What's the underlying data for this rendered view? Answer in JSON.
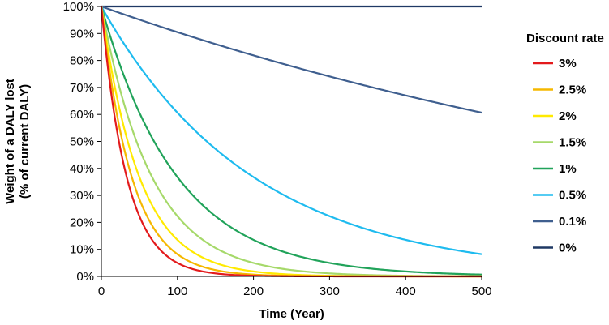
{
  "chart_data": {
    "type": "line",
    "title": "",
    "xlabel": "Time (Year)",
    "ylabel_lines": [
      "Weight of a DALY lost",
      "(% of current DALY)"
    ],
    "xlim": [
      0,
      500
    ],
    "ylim": [
      0,
      100
    ],
    "x_ticks": [
      0,
      100,
      200,
      300,
      400,
      500
    ],
    "x_tick_labels": [
      "0",
      "100",
      "200",
      "300",
      "400",
      "500"
    ],
    "y_ticks": [
      0,
      10,
      20,
      30,
      40,
      50,
      60,
      70,
      80,
      90,
      100
    ],
    "y_tick_labels": [
      "0%",
      "10%",
      "20%",
      "30%",
      "40%",
      "50%",
      "60%",
      "70%",
      "80%",
      "90%",
      "100%"
    ],
    "grid": false,
    "legend": {
      "title": "Discount rate",
      "placement": "right"
    },
    "x": [
      0,
      25,
      50,
      75,
      100,
      150,
      200,
      250,
      300,
      350,
      400,
      450,
      500
    ],
    "series": [
      {
        "name": "3%",
        "rate": 0.03,
        "color": "#e31a1c",
        "values": [
          100,
          47.8,
          22.8,
          10.9,
          5.2,
          1.2,
          0.3,
          0.06,
          0.01,
          0,
          0,
          0,
          0
        ]
      },
      {
        "name": "2.5%",
        "rate": 0.025,
        "color": "#f5b800",
        "values": [
          100,
          53.9,
          29.1,
          15.7,
          8.5,
          2.5,
          0.7,
          0.2,
          0.06,
          0.02,
          0,
          0,
          0
        ]
      },
      {
        "name": "2%",
        "rate": 0.02,
        "color": "#ffea00",
        "values": [
          100,
          61.0,
          37.2,
          22.7,
          13.8,
          5.1,
          1.9,
          0.7,
          0.3,
          0.1,
          0.04,
          0.01,
          0
        ]
      },
      {
        "name": "1.5%",
        "rate": 0.015,
        "color": "#a6d96a",
        "values": [
          100,
          68.9,
          47.6,
          32.8,
          22.6,
          10.7,
          5.1,
          2.4,
          1.2,
          0.5,
          0.3,
          0.1,
          0.06
        ]
      },
      {
        "name": "1%",
        "rate": 0.01,
        "color": "#21a35a",
        "values": [
          100,
          78.0,
          60.8,
          47.4,
          37.0,
          22.5,
          13.7,
          8.3,
          5.1,
          3.1,
          1.9,
          1.1,
          0.7
        ]
      },
      {
        "name": "0.5%",
        "rate": 0.005,
        "color": "#1ebbef",
        "values": [
          100,
          88.3,
          77.9,
          68.8,
          60.7,
          47.3,
          36.8,
          28.7,
          22.4,
          17.4,
          13.6,
          10.6,
          8.2
        ]
      },
      {
        "name": "0.1%",
        "rate": 0.001,
        "color": "#3f5f8f",
        "values": [
          100,
          97.5,
          95.1,
          92.8,
          90.5,
          86.1,
          81.9,
          77.9,
          74.1,
          70.5,
          67.0,
          63.8,
          60.6
        ]
      },
      {
        "name": "0%",
        "rate": 0.0,
        "color": "#1f3864",
        "values": [
          100,
          100,
          100,
          100,
          100,
          100,
          100,
          100,
          100,
          100,
          100,
          100,
          100
        ]
      }
    ]
  }
}
